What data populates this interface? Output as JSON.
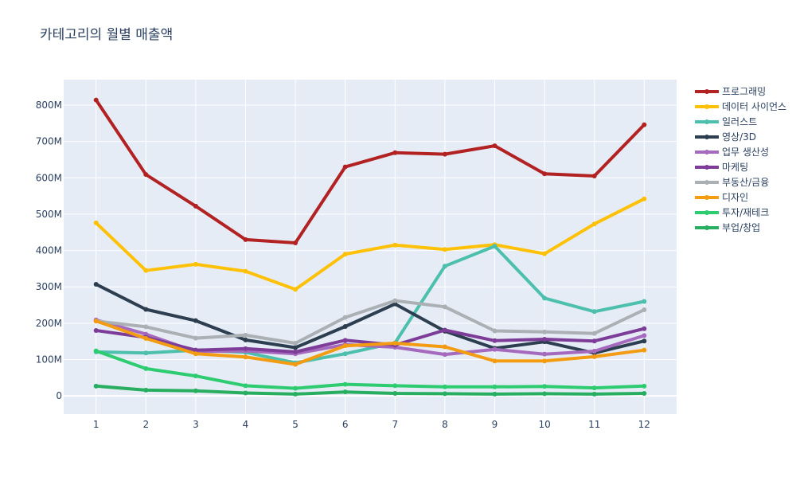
{
  "chart_data": {
    "type": "line",
    "title": "카테고리의 월별 매출액",
    "xlabel": "",
    "ylabel": "",
    "x": [
      1,
      2,
      3,
      4,
      5,
      6,
      7,
      8,
      9,
      10,
      11,
      12
    ],
    "x_tick_labels": [
      "1",
      "2",
      "3",
      "4",
      "5",
      "6",
      "7",
      "8",
      "9",
      "10",
      "11",
      "12"
    ],
    "ylim": [
      -50000000,
      870000000
    ],
    "y_ticks": [
      0,
      100000000,
      200000000,
      300000000,
      400000000,
      500000000,
      600000000,
      700000000,
      800000000
    ],
    "y_tick_labels": [
      "0",
      "100M",
      "200M",
      "300M",
      "400M",
      "500M",
      "600M",
      "700M",
      "800M"
    ],
    "grid": true,
    "legend_position": "right",
    "plot_background": "#E5ECF6",
    "series": [
      {
        "name": "프로그래밍",
        "color": "#B22222",
        "values": [
          814000000,
          609000000,
          522000000,
          430000000,
          421000000,
          630000000,
          669000000,
          665000000,
          688000000,
          611000000,
          605000000,
          746000000
        ]
      },
      {
        "name": "데이터 사이언스",
        "color": "#FFC107",
        "values": [
          476000000,
          345000000,
          362000000,
          343000000,
          293000000,
          390000000,
          415000000,
          403000000,
          416000000,
          391000000,
          473000000,
          542000000
        ]
      },
      {
        "name": "일러스트",
        "color": "#4DBFAD",
        "values": [
          121000000,
          118000000,
          126000000,
          120000000,
          91000000,
          116000000,
          146000000,
          357000000,
          412000000,
          269000000,
          232000000,
          260000000
        ]
      },
      {
        "name": "영상/3D",
        "color": "#2C3E50",
        "values": [
          307000000,
          238000000,
          207000000,
          154000000,
          133000000,
          191000000,
          253000000,
          178000000,
          131000000,
          149000000,
          118000000,
          151000000
        ]
      },
      {
        "name": "업무 생산성",
        "color": "#A569BD",
        "values": [
          209000000,
          170000000,
          122000000,
          124000000,
          116000000,
          141000000,
          134000000,
          114000000,
          128000000,
          115000000,
          123000000,
          166000000
        ]
      },
      {
        "name": "마케팅",
        "color": "#7D3C98",
        "values": [
          180000000,
          161000000,
          126000000,
          130000000,
          121000000,
          153000000,
          140000000,
          181000000,
          152000000,
          156000000,
          151000000,
          185000000
        ]
      },
      {
        "name": "부동산/금융",
        "color": "#AAB0B4",
        "values": [
          206000000,
          190000000,
          159000000,
          167000000,
          145000000,
          216000000,
          262000000,
          245000000,
          179000000,
          176000000,
          172000000,
          237000000
        ]
      },
      {
        "name": "디자인",
        "color": "#F39C12",
        "values": [
          206000000,
          158000000,
          116000000,
          107000000,
          87000000,
          138000000,
          145000000,
          135000000,
          96000000,
          96000000,
          108000000,
          126000000
        ]
      },
      {
        "name": "투자/재테크",
        "color": "#2ECC71",
        "values": [
          124000000,
          75000000,
          55000000,
          28000000,
          21000000,
          32000000,
          28000000,
          25000000,
          25000000,
          26000000,
          22000000,
          27000000
        ]
      },
      {
        "name": "부업/창업",
        "color": "#27AE60",
        "values": [
          27000000,
          16000000,
          14000000,
          8000000,
          5000000,
          11000000,
          7000000,
          6000000,
          5000000,
          6000000,
          5000000,
          7000000
        ]
      }
    ]
  }
}
